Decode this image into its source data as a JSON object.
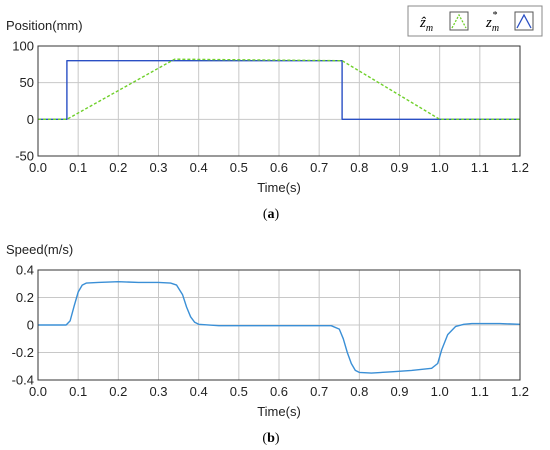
{
  "chart_data": [
    {
      "type": "line",
      "caption": "(a)",
      "caption_letter": "a",
      "ylabel": "Position(mm)",
      "xlabel": "Time(s)",
      "xlim": [
        0,
        1.2
      ],
      "ylim": [
        -50,
        100
      ],
      "xticks": [
        "0.0",
        "0.1",
        "0.2",
        "0.3",
        "0.4",
        "0.5",
        "0.6",
        "0.7",
        "0.8",
        "0.9",
        "1.0",
        "1.1",
        "1.2"
      ],
      "yticks": [
        "-50",
        "0",
        "50",
        "100"
      ],
      "grid": true,
      "legend_position": "top-right",
      "legend": [
        {
          "symbol": "ẑ",
          "sub": "m",
          "sup": ""
        },
        {
          "symbol": "z",
          "sub": "m",
          "sup": "*"
        }
      ],
      "series": [
        {
          "color": "#2a4fc4",
          "dash": "solid",
          "x": [
            0.0,
            0.072,
            0.072,
            0.757,
            0.757,
            1.2
          ],
          "y": [
            0,
            0,
            80,
            80,
            0,
            0
          ]
        },
        {
          "color": "#6fd02a",
          "dash": "dashed",
          "x": [
            0.0,
            0.072,
            0.34,
            0.757,
            1.0,
            1.2
          ],
          "y": [
            0,
            0,
            82,
            80,
            0,
            0
          ]
        }
      ]
    },
    {
      "type": "line",
      "caption": "(b)",
      "caption_letter": "b",
      "ylabel": "Speed(m/s)",
      "xlabel": "Time(s)",
      "xlim": [
        0,
        1.2
      ],
      "ylim": [
        -0.4,
        0.4
      ],
      "xticks": [
        "0.0",
        "0.1",
        "0.2",
        "0.3",
        "0.4",
        "0.5",
        "0.6",
        "0.7",
        "0.8",
        "0.9",
        "1.0",
        "1.1",
        "1.2"
      ],
      "yticks": [
        "-0.4",
        "-0.2",
        "0",
        "0.2",
        "0.4"
      ],
      "grid": true,
      "series": [
        {
          "color": "#3a8fd6",
          "dash": "solid",
          "x": [
            0.0,
            0.07,
            0.08,
            0.09,
            0.1,
            0.11,
            0.12,
            0.15,
            0.2,
            0.25,
            0.3,
            0.33,
            0.345,
            0.36,
            0.37,
            0.38,
            0.39,
            0.4,
            0.45,
            0.5,
            0.6,
            0.7,
            0.73,
            0.75,
            0.76,
            0.77,
            0.78,
            0.79,
            0.8,
            0.83,
            0.88,
            0.93,
            0.98,
            0.995,
            1.005,
            1.02,
            1.04,
            1.06,
            1.08,
            1.1,
            1.15,
            1.2
          ],
          "y": [
            0,
            0,
            0.03,
            0.14,
            0.24,
            0.29,
            0.305,
            0.31,
            0.315,
            0.31,
            0.31,
            0.305,
            0.29,
            0.22,
            0.13,
            0.06,
            0.02,
            0.005,
            -0.005,
            -0.005,
            -0.005,
            -0.005,
            -0.005,
            -0.03,
            -0.1,
            -0.2,
            -0.28,
            -0.33,
            -0.345,
            -0.35,
            -0.34,
            -0.33,
            -0.315,
            -0.28,
            -0.18,
            -0.07,
            -0.01,
            0.005,
            0.01,
            0.01,
            0.01,
            0.005
          ]
        }
      ]
    }
  ]
}
